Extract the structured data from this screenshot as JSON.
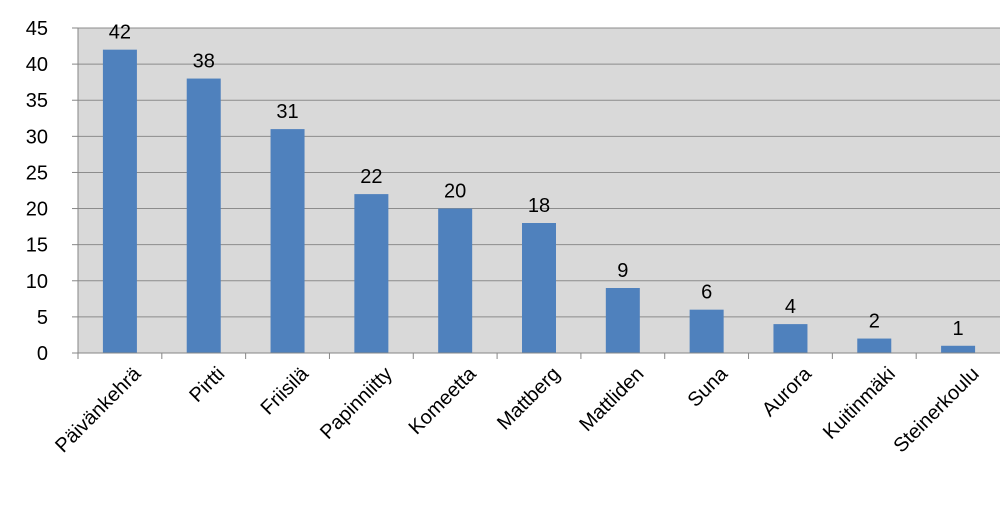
{
  "chart_data": {
    "type": "bar",
    "title": "",
    "xlabel": "",
    "ylabel": "",
    "categories": [
      "Päivänkehrä",
      "Pirtti",
      "Friisilä",
      "Papinniitty",
      "Komeetta",
      "Mattberg",
      "Mattliden",
      "Suna",
      "Aurora",
      "Kuitinmäki",
      "Steinerkoulu"
    ],
    "values": [
      42,
      38,
      31,
      22,
      20,
      18,
      9,
      6,
      4,
      2,
      1
    ],
    "ylim": [
      0,
      45
    ],
    "yticks": [
      "0",
      "5",
      "10",
      "15",
      "20",
      "25",
      "30",
      "35",
      "40",
      "45"
    ],
    "grid": true,
    "legend": "none",
    "colors": {
      "bar": "#4f81bd",
      "plot_background": "#d9d9d9",
      "gridline": "#8c8c8c",
      "axis": "#868686"
    }
  }
}
